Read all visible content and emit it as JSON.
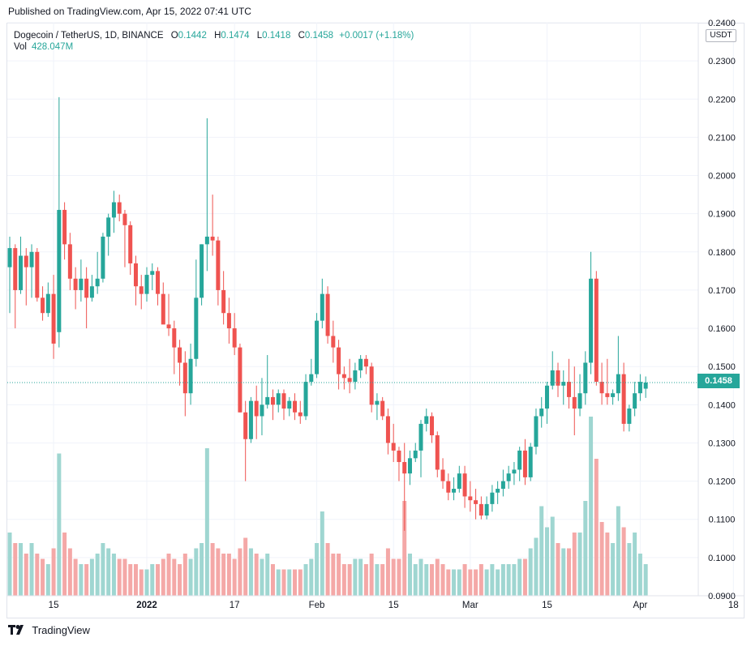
{
  "header": {
    "published": "Published on TradingView.com, Apr 15, 2022 07:41 UTC"
  },
  "legend": {
    "symbol": "Dogecoin / TetherUS, 1D, BINANCE",
    "open_label": "O",
    "open": "0.1442",
    "high_label": "H",
    "high": "0.1474",
    "low_label": "L",
    "low": "0.1418",
    "close_label": "C",
    "close": "0.1458",
    "change": "+0.0017 (+1.18%)",
    "vol_label": "Vol",
    "vol_value": "428.047M"
  },
  "price_axis": {
    "currency": "USDT",
    "last_price": "0.1458"
  },
  "footer": {
    "brand": "TradingView"
  },
  "colors": {
    "up": "#26a69a",
    "down": "#ef5350",
    "up_vol": "#9fd6d1",
    "down_vol": "#f4a8a7",
    "grid": "#f0f3fa",
    "text": "#131722"
  },
  "chart_data": {
    "type": "candlestick",
    "symbol": "DOGEUSDT",
    "interval": "1D",
    "ylim": [
      0.09,
      0.24
    ],
    "y_ticks": [
      "0.0900",
      "0.1000",
      "0.1100",
      "0.1200",
      "0.1300",
      "0.1400",
      "0.1500",
      "0.1600",
      "0.1700",
      "0.1800",
      "0.1900",
      "0.2000",
      "0.2100",
      "0.2200",
      "0.2300",
      "0.2400"
    ],
    "x_ticks": [
      {
        "label": "15",
        "index": 8
      },
      {
        "label": "2022",
        "index": 25
      },
      {
        "label": "17",
        "index": 41
      },
      {
        "label": "Feb",
        "index": 56
      },
      {
        "label": "15",
        "index": 70
      },
      {
        "label": "Mar",
        "index": 84
      },
      {
        "label": "15",
        "index": 98
      },
      {
        "label": "Apr",
        "index": 115
      },
      {
        "label": "18",
        "index": 132
      }
    ],
    "last_price": 0.1458,
    "ohlcv": [
      [
        0.176,
        0.184,
        0.164,
        0.181,
        0.6
      ],
      [
        0.181,
        0.182,
        0.16,
        0.17,
        0.5
      ],
      [
        0.17,
        0.184,
        0.169,
        0.179,
        0.5
      ],
      [
        0.179,
        0.181,
        0.166,
        0.176,
        0.4
      ],
      [
        0.176,
        0.182,
        0.168,
        0.18,
        0.5
      ],
      [
        0.18,
        0.181,
        0.167,
        0.168,
        0.4
      ],
      [
        0.168,
        0.171,
        0.162,
        0.164,
        0.35
      ],
      [
        0.164,
        0.172,
        0.163,
        0.169,
        0.3
      ],
      [
        0.169,
        0.174,
        0.152,
        0.156,
        0.45
      ],
      [
        0.159,
        0.2205,
        0.155,
        0.191,
        1.35
      ],
      [
        0.191,
        0.193,
        0.178,
        0.182,
        0.6
      ],
      [
        0.182,
        0.185,
        0.17,
        0.173,
        0.45
      ],
      [
        0.173,
        0.176,
        0.165,
        0.17,
        0.35
      ],
      [
        0.17,
        0.178,
        0.167,
        0.173,
        0.3
      ],
      [
        0.173,
        0.176,
        0.16,
        0.168,
        0.3
      ],
      [
        0.168,
        0.174,
        0.167,
        0.171,
        0.35
      ],
      [
        0.171,
        0.18,
        0.169,
        0.173,
        0.4
      ],
      [
        0.173,
        0.185,
        0.172,
        0.184,
        0.5
      ],
      [
        0.184,
        0.19,
        0.179,
        0.189,
        0.45
      ],
      [
        0.189,
        0.196,
        0.185,
        0.193,
        0.4
      ],
      [
        0.193,
        0.195,
        0.188,
        0.19,
        0.35
      ],
      [
        0.19,
        0.191,
        0.176,
        0.187,
        0.35
      ],
      [
        0.187,
        0.188,
        0.174,
        0.177,
        0.3
      ],
      [
        0.177,
        0.179,
        0.166,
        0.171,
        0.3
      ],
      [
        0.171,
        0.174,
        0.165,
        0.169,
        0.25
      ],
      [
        0.169,
        0.176,
        0.167,
        0.174,
        0.25
      ],
      [
        0.174,
        0.177,
        0.17,
        0.175,
        0.3
      ],
      [
        0.175,
        0.176,
        0.166,
        0.169,
        0.3
      ],
      [
        0.169,
        0.172,
        0.162,
        0.161,
        0.35
      ],
      [
        0.161,
        0.169,
        0.158,
        0.16,
        0.4
      ],
      [
        0.16,
        0.162,
        0.148,
        0.155,
        0.35
      ],
      [
        0.155,
        0.157,
        0.145,
        0.151,
        0.3
      ],
      [
        0.151,
        0.154,
        0.137,
        0.143,
        0.4
      ],
      [
        0.143,
        0.156,
        0.14,
        0.152,
        0.35
      ],
      [
        0.152,
        0.178,
        0.15,
        0.168,
        0.45
      ],
      [
        0.168,
        0.182,
        0.166,
        0.182,
        0.5
      ],
      [
        0.182,
        0.215,
        0.175,
        0.184,
        1.4
      ],
      [
        0.184,
        0.195,
        0.179,
        0.183,
        0.5
      ],
      [
        0.183,
        0.184,
        0.166,
        0.17,
        0.45
      ],
      [
        0.17,
        0.175,
        0.161,
        0.164,
        0.4
      ],
      [
        0.164,
        0.168,
        0.156,
        0.16,
        0.4
      ],
      [
        0.16,
        0.164,
        0.153,
        0.155,
        0.35
      ],
      [
        0.155,
        0.156,
        0.138,
        0.138,
        0.45
      ],
      [
        0.138,
        0.141,
        0.12,
        0.131,
        0.55
      ],
      [
        0.131,
        0.142,
        0.13,
        0.141,
        0.45
      ],
      [
        0.141,
        0.145,
        0.131,
        0.137,
        0.4
      ],
      [
        0.137,
        0.147,
        0.132,
        0.14,
        0.35
      ],
      [
        0.14,
        0.153,
        0.139,
        0.142,
        0.4
      ],
      [
        0.142,
        0.144,
        0.136,
        0.14,
        0.3
      ],
      [
        0.14,
        0.144,
        0.138,
        0.143,
        0.25
      ],
      [
        0.143,
        0.144,
        0.136,
        0.139,
        0.25
      ],
      [
        0.139,
        0.142,
        0.137,
        0.141,
        0.25
      ],
      [
        0.141,
        0.143,
        0.136,
        0.138,
        0.25
      ],
      [
        0.138,
        0.141,
        0.135,
        0.137,
        0.25
      ],
      [
        0.137,
        0.148,
        0.136,
        0.146,
        0.3
      ],
      [
        0.146,
        0.152,
        0.145,
        0.148,
        0.35
      ],
      [
        0.148,
        0.164,
        0.147,
        0.162,
        0.5
      ],
      [
        0.162,
        0.173,
        0.16,
        0.169,
        0.8
      ],
      [
        0.169,
        0.171,
        0.156,
        0.158,
        0.5
      ],
      [
        0.158,
        0.162,
        0.151,
        0.155,
        0.4
      ],
      [
        0.155,
        0.157,
        0.144,
        0.148,
        0.4
      ],
      [
        0.148,
        0.15,
        0.144,
        0.147,
        0.3
      ],
      [
        0.147,
        0.152,
        0.143,
        0.146,
        0.3
      ],
      [
        0.146,
        0.151,
        0.144,
        0.149,
        0.35
      ],
      [
        0.149,
        0.153,
        0.147,
        0.152,
        0.35
      ],
      [
        0.152,
        0.153,
        0.148,
        0.15,
        0.3
      ],
      [
        0.15,
        0.151,
        0.138,
        0.14,
        0.4
      ],
      [
        0.14,
        0.143,
        0.136,
        0.141,
        0.3
      ],
      [
        0.141,
        0.142,
        0.136,
        0.137,
        0.3
      ],
      [
        0.137,
        0.139,
        0.127,
        0.13,
        0.45
      ],
      [
        0.13,
        0.135,
        0.125,
        0.128,
        0.35
      ],
      [
        0.128,
        0.129,
        0.12,
        0.125,
        0.35
      ],
      [
        0.125,
        0.13,
        0.107,
        0.122,
        0.9
      ],
      [
        0.122,
        0.128,
        0.119,
        0.126,
        0.4
      ],
      [
        0.126,
        0.13,
        0.125,
        0.128,
        0.3
      ],
      [
        0.128,
        0.136,
        0.121,
        0.135,
        0.35
      ],
      [
        0.135,
        0.139,
        0.133,
        0.137,
        0.3
      ],
      [
        0.137,
        0.138,
        0.13,
        0.132,
        0.3
      ],
      [
        0.132,
        0.133,
        0.121,
        0.123,
        0.35
      ],
      [
        0.123,
        0.126,
        0.118,
        0.12,
        0.3
      ],
      [
        0.12,
        0.122,
        0.115,
        0.117,
        0.25
      ],
      [
        0.117,
        0.121,
        0.115,
        0.118,
        0.25
      ],
      [
        0.118,
        0.124,
        0.117,
        0.122,
        0.25
      ],
      [
        0.122,
        0.124,
        0.113,
        0.116,
        0.3
      ],
      [
        0.116,
        0.12,
        0.112,
        0.115,
        0.25
      ],
      [
        0.115,
        0.118,
        0.11,
        0.114,
        0.25
      ],
      [
        0.114,
        0.116,
        0.11,
        0.111,
        0.3
      ],
      [
        0.111,
        0.116,
        0.11,
        0.114,
        0.25
      ],
      [
        0.114,
        0.119,
        0.112,
        0.117,
        0.3
      ],
      [
        0.117,
        0.12,
        0.114,
        0.118,
        0.25
      ],
      [
        0.118,
        0.123,
        0.116,
        0.12,
        0.3
      ],
      [
        0.12,
        0.124,
        0.118,
        0.122,
        0.3
      ],
      [
        0.122,
        0.125,
        0.119,
        0.123,
        0.3
      ],
      [
        0.123,
        0.129,
        0.12,
        0.128,
        0.35
      ],
      [
        0.128,
        0.131,
        0.119,
        0.121,
        0.35
      ],
      [
        0.121,
        0.13,
        0.12,
        0.129,
        0.45
      ],
      [
        0.129,
        0.139,
        0.127,
        0.137,
        0.55
      ],
      [
        0.137,
        0.142,
        0.134,
        0.139,
        0.85
      ],
      [
        0.139,
        0.146,
        0.135,
        0.145,
        0.65
      ],
      [
        0.145,
        0.154,
        0.144,
        0.149,
        0.75
      ],
      [
        0.149,
        0.151,
        0.142,
        0.145,
        0.5
      ],
      [
        0.145,
        0.149,
        0.14,
        0.146,
        0.45
      ],
      [
        0.146,
        0.152,
        0.139,
        0.142,
        0.45
      ],
      [
        0.142,
        0.15,
        0.132,
        0.139,
        0.6
      ],
      [
        0.139,
        0.148,
        0.137,
        0.143,
        0.6
      ],
      [
        0.143,
        0.154,
        0.14,
        0.151,
        0.9
      ],
      [
        0.151,
        0.18,
        0.148,
        0.173,
        1.7
      ],
      [
        0.173,
        0.175,
        0.145,
        0.146,
        1.3
      ],
      [
        0.146,
        0.151,
        0.14,
        0.143,
        0.7
      ],
      [
        0.143,
        0.152,
        0.14,
        0.142,
        0.6
      ],
      [
        0.142,
        0.144,
        0.14,
        0.143,
        0.5
      ],
      [
        0.143,
        0.158,
        0.141,
        0.148,
        0.85
      ],
      [
        0.148,
        0.151,
        0.133,
        0.135,
        0.65
      ],
      [
        0.135,
        0.14,
        0.133,
        0.139,
        0.5
      ],
      [
        0.139,
        0.146,
        0.137,
        0.143,
        0.6
      ],
      [
        0.143,
        0.148,
        0.141,
        0.146,
        0.4
      ],
      [
        0.1442,
        0.1474,
        0.1418,
        0.1458,
        0.3
      ]
    ]
  }
}
